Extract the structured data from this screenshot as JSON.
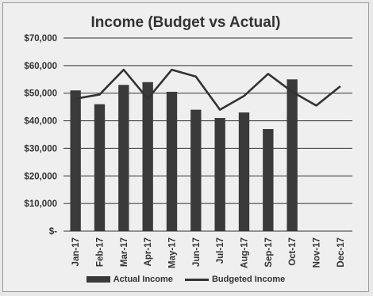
{
  "chart_data": {
    "type": "bar",
    "title": "Income (Budget vs Actual)",
    "categories": [
      "Jan-17",
      "Feb-17",
      "Mar-17",
      "Apr-17",
      "May-17",
      "Jun-17",
      "Jul-17",
      "Aug-17",
      "Sep-17",
      "Oct-17",
      "Nov-17",
      "Dec-17"
    ],
    "series": [
      {
        "name": "Actual Income",
        "kind": "bar",
        "values": [
          51000,
          46000,
          53000,
          54000,
          50500,
          44000,
          41000,
          43000,
          37000,
          55000,
          null,
          null
        ]
      },
      {
        "name": "Budgeted Income",
        "kind": "line",
        "values": [
          48000,
          49500,
          58500,
          48000,
          58500,
          56000,
          44000,
          49000,
          57000,
          50500,
          45500,
          52500
        ]
      }
    ],
    "ylim": [
      0,
      70000
    ],
    "yticks": [
      0,
      10000,
      20000,
      30000,
      40000,
      50000,
      60000,
      70000
    ],
    "ytick_labels": [
      "$-",
      "$10,000",
      "$20,000",
      "$30,000",
      "$40,000",
      "$50,000",
      "$60,000",
      "$70,000"
    ],
    "grid": true,
    "legend_position": "bottom",
    "colors": {
      "bar": "#3a3a3a",
      "line": "#333333",
      "grid": "#333333"
    }
  }
}
